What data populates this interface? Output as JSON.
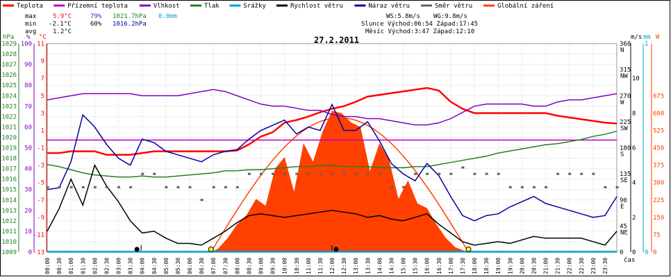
{
  "legend": [
    {
      "label": "Teplota",
      "color": "#ff0000"
    },
    {
      "label": "Přízemní teplota",
      "color": "#c000c0"
    },
    {
      "label": "Vlhkost",
      "color": "#8000c0"
    },
    {
      "label": "Tlak",
      "color": "#208020"
    },
    {
      "label": "Srážky",
      "color": "#00a0d0"
    },
    {
      "label": "Rychlost větru",
      "color": "#000000"
    },
    {
      "label": "Náraz větru",
      "color": "#0000a0"
    },
    {
      "label": "Směr větru",
      "color": "#606060"
    },
    {
      "label": "Globální záření",
      "color": "#ff4000"
    }
  ],
  "stats": {
    "max_label": "max",
    "max_temp": "5.9°C",
    "max_hum": "79%",
    "max_press": "1021.7hPa",
    "max_rain": "0.0mm",
    "min_label": "min",
    "min_temp": "-2.1°C",
    "min_hum": "60%",
    "min_press": "1016.2hPa",
    "avg_label": "avg",
    "avg_temp": "1.2°C"
  },
  "info": {
    "ws": "WS:5.8m/s",
    "wg": "WG:9.8m/s",
    "sun": "Slunce Východ:06:54   Západ:17:45",
    "moon": "Měsíc  Východ:3:47    Západ:12:10"
  },
  "title": "27.2.2011",
  "chart_data": {
    "type": "line",
    "title": "27.2.2011",
    "xlabel": "čas",
    "x_ticks": [
      "00:00",
      "00:30",
      "01:00",
      "01:30",
      "02:00",
      "02:30",
      "03:00",
      "03:30",
      "04:00",
      "04:30",
      "05:00",
      "05:30",
      "06:00",
      "06:30",
      "07:00",
      "07:30",
      "08:00",
      "08:30",
      "09:00",
      "09:30",
      "10:00",
      "10:30",
      "11:00",
      "11:30",
      "12:00",
      "12:30",
      "13:00",
      "13:30",
      "14:00",
      "14:30",
      "15:00",
      "15:30",
      "16:00",
      "16:30",
      "17:00",
      "17:30",
      "18:00",
      "18:30",
      "19:00",
      "19:30",
      "20:00",
      "20:30",
      "21:00",
      "21:30",
      "22:00",
      "22:30",
      "23:00",
      "23:30"
    ],
    "xlim": [
      0,
      24
    ],
    "axes": {
      "pressure": {
        "label": "hPa",
        "ticks": [
          "1029",
          "1028",
          "1027",
          "1026",
          "1025",
          "1024",
          "1023",
          "1022",
          "1021",
          "1020",
          "1019",
          "1018",
          "1017",
          "1016",
          "1015",
          "1014",
          "1013",
          "1012",
          "1011",
          "1010",
          "1009"
        ],
        "ylim": [
          1009,
          1029
        ],
        "color": "#208020"
      },
      "humidity": {
        "label": "%",
        "ticks": [
          "100",
          "90",
          "80",
          "70",
          "60",
          "50",
          "40",
          "30",
          "20",
          "10",
          "0"
        ],
        "ylim": [
          0,
          100
        ],
        "color": "#8000c0"
      },
      "temperature": {
        "label": "°C",
        "ticks": [
          "11",
          "9",
          "7",
          "5",
          "3",
          "1",
          "-1",
          "-3",
          "-5",
          "-7",
          "-9",
          "-11",
          "-13"
        ],
        "ylim": [
          -13,
          11
        ],
        "color": "#ff0000"
      },
      "direction": {
        "ticks": [
          "360 N",
          "315 NW",
          "270 W",
          "225 SW",
          "180 S",
          "135 SE",
          "90 E",
          "45 NE",
          "0"
        ],
        "ylim": [
          0,
          360
        ]
      },
      "wind": {
        "label": "m/s",
        "ticks": [
          "10",
          "8",
          "6",
          "4",
          "2",
          "0"
        ],
        "ylim": [
          0,
          12
        ]
      },
      "rain": {
        "label": "mm",
        "ticks": [
          "1",
          "0"
        ],
        "ylim": [
          0,
          1
        ],
        "color": "#00a0d0"
      },
      "radiation": {
        "label": "W",
        "ticks": [
          "675",
          "600",
          "525",
          "450",
          "375",
          "300",
          "225",
          "150",
          "75",
          "0"
        ],
        "ylim": [
          0,
          900
        ],
        "color": "#ff4000"
      }
    },
    "series": [
      {
        "name": "Teplota",
        "axis": "temperature",
        "color": "#ff0000",
        "x": [
          0,
          0.5,
          1,
          1.5,
          2,
          2.5,
          3,
          3.5,
          4,
          4.5,
          5,
          5.5,
          6,
          6.5,
          7,
          7.5,
          8,
          8.5,
          9,
          9.5,
          10,
          10.5,
          11,
          11.5,
          12,
          12.5,
          13,
          13.5,
          14,
          14.5,
          15,
          15.5,
          16,
          16.5,
          17,
          17.5,
          18,
          18.5,
          19,
          19.5,
          20,
          20.5,
          21,
          21.5,
          22,
          22.5,
          23,
          23.5,
          24
        ],
        "y": [
          -1.6,
          -1.6,
          -1.4,
          -1.4,
          -1.4,
          -1.8,
          -1.8,
          -1.8,
          -1.6,
          -1.4,
          -1.4,
          -1.4,
          -1.4,
          -1.4,
          -1.4,
          -1.4,
          -1.3,
          -0.6,
          0.3,
          0.8,
          1.9,
          2.2,
          2.6,
          3.1,
          3.5,
          3.8,
          4.3,
          4.9,
          5.1,
          5.3,
          5.5,
          5.7,
          5.9,
          5.6,
          4.3,
          3.5,
          3.0,
          3.0,
          3.0,
          3.0,
          3.0,
          3.0,
          3.0,
          2.7,
          2.5,
          2.3,
          2.1,
          1.9,
          1.8
        ]
      },
      {
        "name": "Přízemní teplota",
        "axis": "temperature",
        "color": "#c000c0",
        "x": [
          0,
          24
        ],
        "y": [
          -0.1,
          -0.1
        ]
      },
      {
        "name": "Vlhkost",
        "axis": "humidity",
        "color": "#8000c0",
        "x": [
          0,
          0.5,
          1,
          1.5,
          2,
          2.5,
          3,
          3.5,
          4,
          4.5,
          5,
          5.5,
          6,
          6.5,
          7,
          7.5,
          8,
          8.5,
          9,
          9.5,
          10,
          10.5,
          11,
          11.5,
          12,
          12.5,
          13,
          13.5,
          14,
          14.5,
          15,
          15.5,
          16,
          16.5,
          17,
          17.5,
          18,
          18.5,
          19,
          19.5,
          20,
          20.5,
          21,
          21.5,
          22,
          22.5,
          23,
          23.5,
          24
        ],
        "y": [
          73,
          74,
          75,
          76,
          76,
          76,
          76,
          76,
          75,
          75,
          75,
          75,
          76,
          77,
          78,
          77,
          75,
          73,
          71,
          70,
          70,
          69,
          68,
          68,
          66,
          65,
          65,
          64,
          64,
          63,
          62,
          61,
          61,
          62,
          64,
          67,
          70,
          71,
          71,
          71,
          71,
          70,
          70,
          72,
          73,
          73,
          74,
          75,
          76
        ]
      },
      {
        "name": "Tlak",
        "axis": "pressure",
        "color": "#208020",
        "x": [
          0,
          0.5,
          1,
          1.5,
          2,
          2.5,
          3,
          3.5,
          4,
          4.5,
          5,
          5.5,
          6,
          6.5,
          7,
          7.5,
          8,
          8.5,
          9,
          9.5,
          10,
          10.5,
          11,
          11.5,
          12,
          12.5,
          13,
          13.5,
          14,
          14.5,
          15,
          15.5,
          16,
          16.5,
          17,
          17.5,
          18,
          18.5,
          19,
          19.5,
          20,
          20.5,
          21,
          21.5,
          22,
          22.5,
          23,
          23.5,
          24
        ],
        "y": [
          1017.4,
          1017.2,
          1016.9,
          1016.6,
          1016.4,
          1016.3,
          1016.2,
          1016.2,
          1016.3,
          1016.2,
          1016.2,
          1016.3,
          1016.4,
          1016.5,
          1016.6,
          1016.8,
          1016.8,
          1016.9,
          1016.9,
          1017.0,
          1017.1,
          1017.2,
          1017.2,
          1017.3,
          1017.3,
          1017.2,
          1017.2,
          1017.2,
          1017.1,
          1017.1,
          1017.1,
          1017.2,
          1017.2,
          1017.4,
          1017.6,
          1017.8,
          1018.0,
          1018.2,
          1018.5,
          1018.7,
          1018.9,
          1019.1,
          1019.3,
          1019.4,
          1019.6,
          1019.8,
          1020.1,
          1020.3,
          1020.6
        ]
      },
      {
        "name": "Rychlost větru",
        "axis": "wind",
        "color": "#000000",
        "x": [
          0,
          0.5,
          1,
          1.5,
          2,
          2.5,
          3,
          3.5,
          4,
          4.5,
          5,
          5.5,
          6,
          6.5,
          7,
          7.5,
          8,
          8.5,
          9,
          9.5,
          10,
          10.5,
          11,
          11.5,
          12,
          12.5,
          13,
          13.5,
          14,
          14.5,
          15,
          15.5,
          16,
          16.5,
          17,
          17.5,
          18,
          18.5,
          19,
          19.5,
          20,
          20.5,
          21,
          21.5,
          22,
          22.5,
          23,
          23.5,
          24
        ],
        "y": [
          1.2,
          2.5,
          4.2,
          2.7,
          5.0,
          3.8,
          2.9,
          1.8,
          1.1,
          1.2,
          0.8,
          0.5,
          0.5,
          0.4,
          0.8,
          1.2,
          1.7,
          2.1,
          2.2,
          2.1,
          2.0,
          2.1,
          2.2,
          2.3,
          2.4,
          2.3,
          2.2,
          2.0,
          2.1,
          1.9,
          1.8,
          2.0,
          2.2,
          1.6,
          1.1,
          0.6,
          0.4,
          0.5,
          0.6,
          0.5,
          0.7,
          0.9,
          0.8,
          0.8,
          0.8,
          0.8,
          0.6,
          0.4,
          1.2
        ]
      },
      {
        "name": "Náraz větru",
        "axis": "wind",
        "color": "#0000a0",
        "x": [
          0,
          0.5,
          1,
          1.5,
          2,
          2.5,
          3,
          3.5,
          4,
          4.5,
          5,
          5.5,
          6,
          6.5,
          7,
          7.5,
          8,
          8.5,
          9,
          9.5,
          10,
          10.5,
          11,
          11.5,
          12,
          12.5,
          13,
          13.5,
          14,
          14.5,
          15,
          15.5,
          16,
          16.5,
          17,
          17.5,
          18,
          18.5,
          19,
          19.5,
          20,
          20.5,
          21,
          21.5,
          22,
          22.5,
          23,
          23.5,
          24
        ],
        "y": [
          3.6,
          3.7,
          5.2,
          7.9,
          7.2,
          6.2,
          5.4,
          5.0,
          6.5,
          6.3,
          5.8,
          5.6,
          5.4,
          5.2,
          5.6,
          5.8,
          5.9,
          6.5,
          7.0,
          7.3,
          7.6,
          6.8,
          7.2,
          7.0,
          8.5,
          7.0,
          7.0,
          7.5,
          6.4,
          5.1,
          4.5,
          4.1,
          5.1,
          4.4,
          3.2,
          2.1,
          1.8,
          2.1,
          2.2,
          2.6,
          2.9,
          3.2,
          2.8,
          2.6,
          2.4,
          2.2,
          2.0,
          2.1,
          3.2
        ]
      },
      {
        "name": "Směr větru",
        "axis": "direction",
        "color": "#606060",
        "x": [
          0,
          0.5,
          1,
          1.5,
          2,
          2.5,
          3,
          3.5,
          4,
          4.5,
          5,
          5.5,
          6,
          6.5,
          7,
          7.5,
          8,
          8.5,
          9,
          9.5,
          10,
          10.5,
          11,
          11.5,
          12,
          12.5,
          13,
          13.5,
          14,
          14.5,
          15,
          15.5,
          16,
          16.5,
          17,
          17.5,
          18,
          18.5,
          19,
          19.5,
          20,
          20.5,
          21,
          21.5,
          22,
          22.5,
          23,
          23.5,
          24
        ],
        "y": [
          112,
          112,
          112,
          112,
          112,
          112,
          112,
          112,
          135,
          135,
          112,
          112,
          112,
          90,
          112,
          112,
          112,
          135,
          135,
          135,
          135,
          135,
          135,
          135,
          135,
          135,
          135,
          135,
          135,
          112,
          112,
          135,
          135,
          135,
          135,
          146,
          135,
          135,
          135,
          112,
          112,
          112,
          112,
          135,
          135,
          135,
          135,
          112,
          112
        ]
      },
      {
        "name": "Globální záření",
        "axis": "radiation",
        "color": "#ff4000",
        "x": [
          0,
          6.9,
          7.2,
          7.6,
          8,
          8.4,
          8.8,
          9.2,
          9.6,
          10,
          10.4,
          10.8,
          11.2,
          11.6,
          12,
          12.4,
          12.8,
          13.2,
          13.6,
          14,
          14.4,
          14.8,
          15.2,
          15.6,
          16,
          16.4,
          16.8,
          17.2,
          17.6,
          17.8,
          24
        ],
        "y": [
          0,
          0,
          15,
          60,
          120,
          160,
          230,
          200,
          360,
          410,
          260,
          470,
          390,
          520,
          610,
          600,
          560,
          540,
          350,
          470,
          400,
          230,
          310,
          210,
          190,
          120,
          60,
          20,
          5,
          0,
          0
        ]
      },
      {
        "name": "Srážky",
        "axis": "rain",
        "color": "#00a0d0",
        "x": [
          0,
          24
        ],
        "y": [
          0,
          0
        ]
      }
    ],
    "clear_sky": {
      "axis": "radiation",
      "color": "#ff4000",
      "rise": 6.9,
      "set": 17.75,
      "peak": 580
    }
  }
}
